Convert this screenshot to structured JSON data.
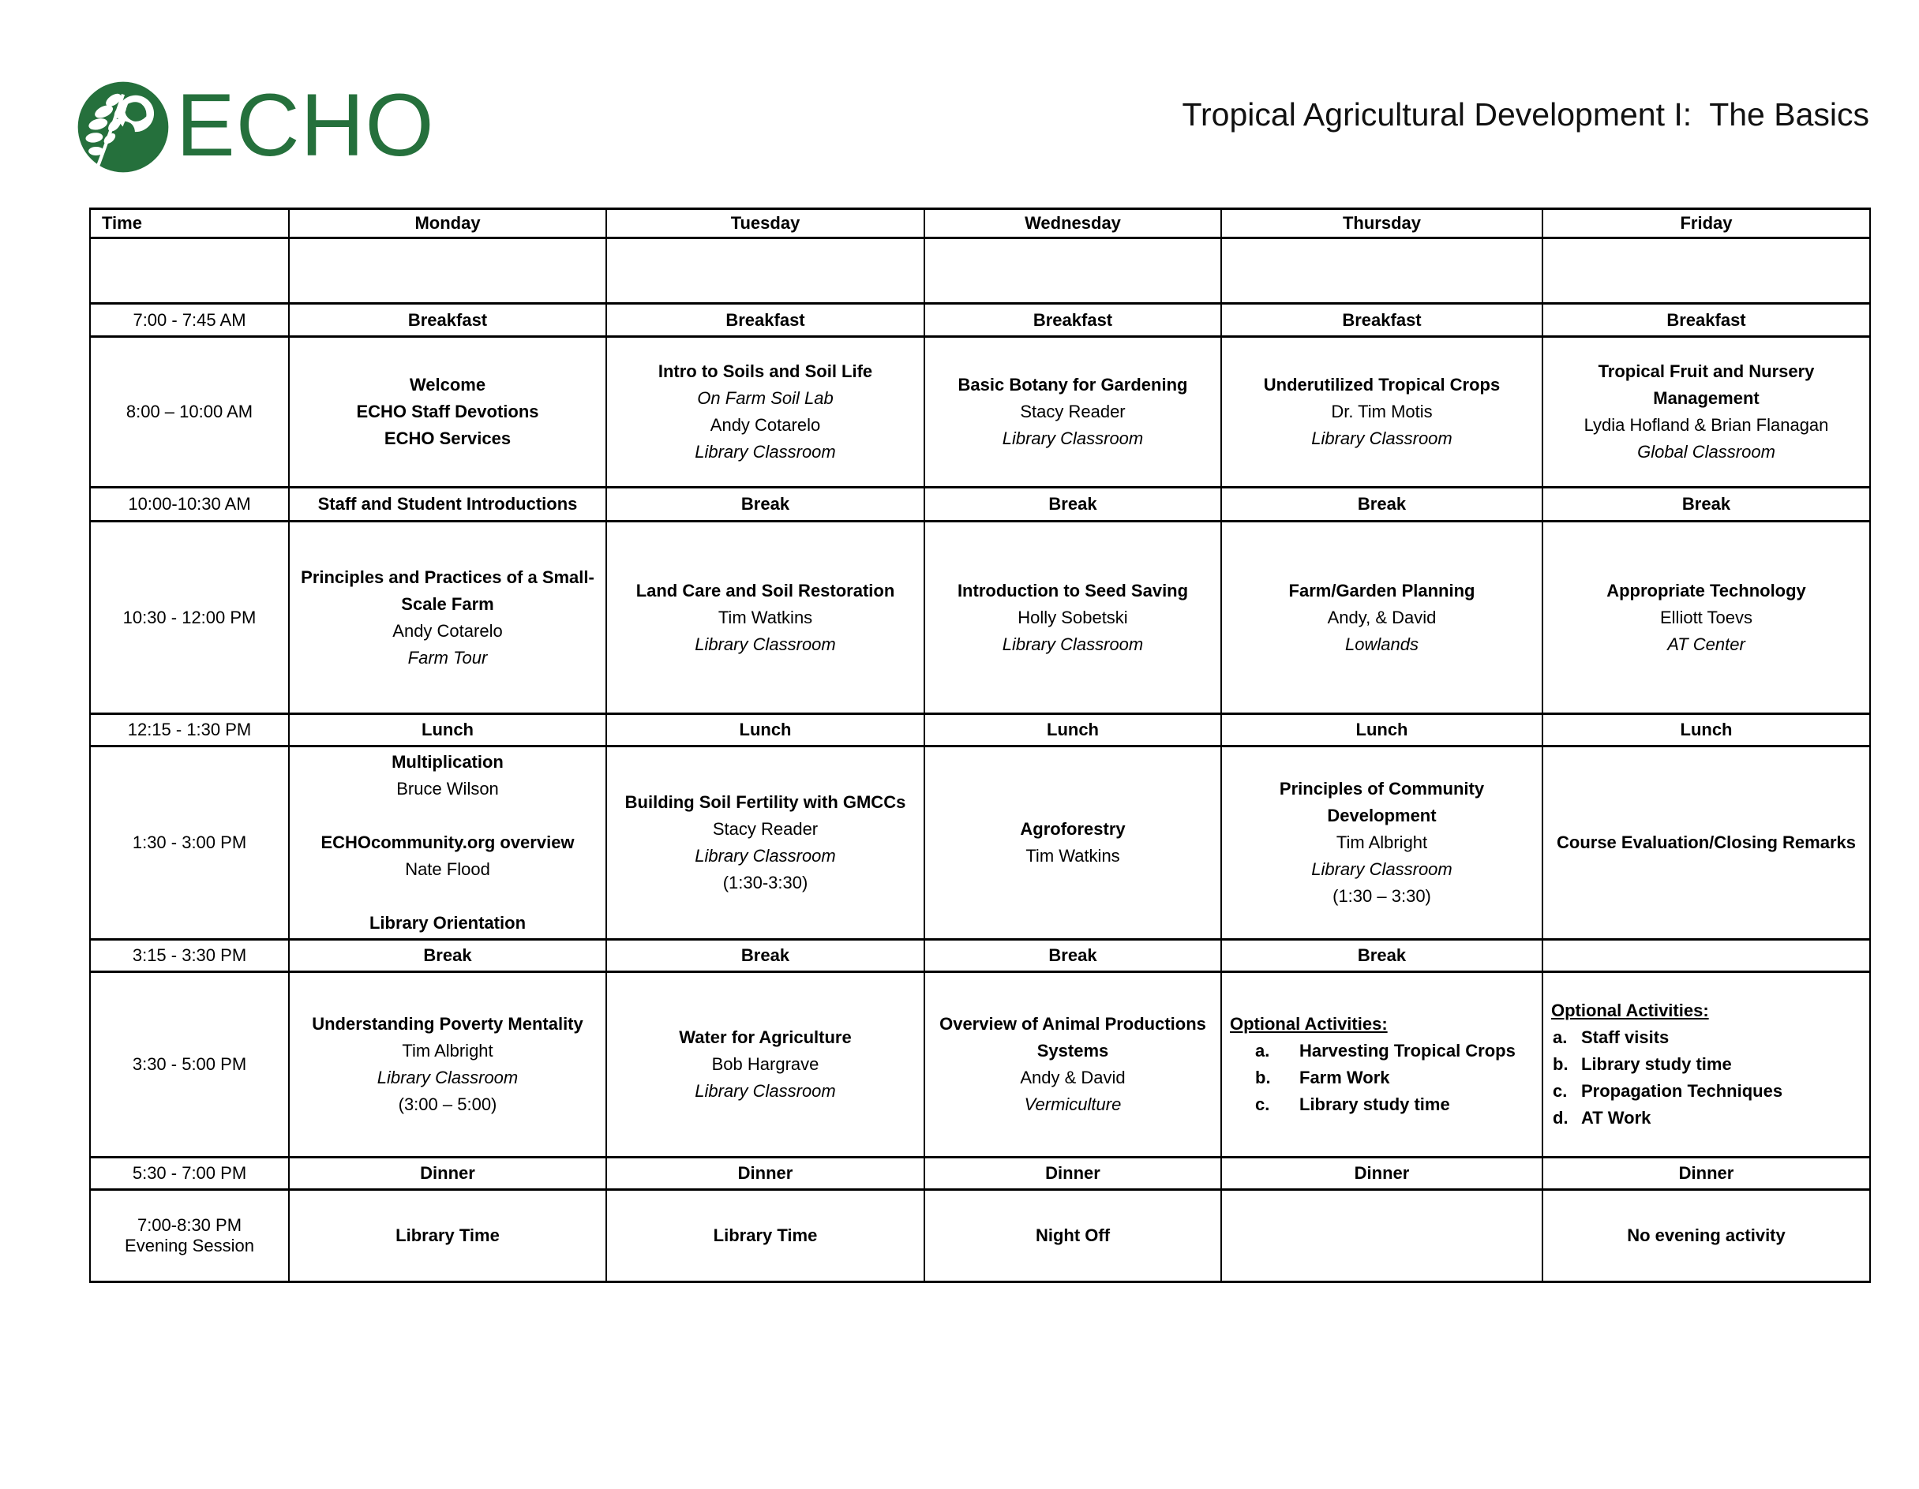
{
  "logo": {
    "text": "ECHO",
    "icon": "echo-leaf-globe-icon",
    "color": "#25703c"
  },
  "header": {
    "title": "Tropical Agricultural Development I:  The Basics"
  },
  "table": {
    "columns": [
      "Time",
      "Monday",
      "Tuesday",
      "Wednesday",
      "Thursday",
      "Friday"
    ],
    "rows": [
      {
        "time": "",
        "cells": [
          {
            "lines": []
          },
          {
            "lines": []
          },
          {
            "lines": []
          },
          {
            "lines": []
          },
          {
            "lines": []
          }
        ]
      },
      {
        "time": "7:00 - 7:45 AM",
        "cells": [
          {
            "lines": [
              {
                "style": "bold",
                "text": "Breakfast"
              }
            ]
          },
          {
            "lines": [
              {
                "style": "bold",
                "text": "Breakfast"
              }
            ]
          },
          {
            "lines": [
              {
                "style": "bold",
                "text": "Breakfast"
              }
            ]
          },
          {
            "lines": [
              {
                "style": "bold",
                "text": "Breakfast"
              }
            ]
          },
          {
            "lines": [
              {
                "style": "bold",
                "text": "Breakfast"
              }
            ]
          }
        ]
      },
      {
        "time": "8:00 – 10:00 AM",
        "cells": [
          {
            "lines": [
              {
                "style": "bold",
                "text": "Welcome"
              },
              {
                "style": "bold",
                "text": "ECHO Staff Devotions"
              },
              {
                "style": "bold",
                "text": "ECHO Services"
              }
            ]
          },
          {
            "lines": [
              {
                "style": "bold",
                "text": "Intro to Soils and Soil Life"
              },
              {
                "style": "italic",
                "text": "On Farm Soil Lab"
              },
              {
                "style": "plain",
                "text": "Andy Cotarelo"
              },
              {
                "style": "italic",
                "text": "Library Classroom"
              }
            ]
          },
          {
            "lines": [
              {
                "style": "bold",
                "text": "Basic Botany for Gardening"
              },
              {
                "style": "plain",
                "text": "Stacy Reader"
              },
              {
                "style": "italic",
                "text": "Library Classroom"
              }
            ]
          },
          {
            "lines": [
              {
                "style": "bold",
                "text": "Underutilized Tropical Crops"
              },
              {
                "style": "plain",
                "text": "Dr. Tim Motis"
              },
              {
                "style": "italic",
                "text": "Library Classroom"
              }
            ]
          },
          {
            "lines": [
              {
                "style": "bold",
                "text": "Tropical Fruit and Nursery Management"
              },
              {
                "style": "plain",
                "text": "Lydia Hofland & Brian Flanagan"
              },
              {
                "style": "italic",
                "text": "Global Classroom"
              }
            ]
          }
        ]
      },
      {
        "time": "10:00-10:30 AM",
        "cells": [
          {
            "lines": [
              {
                "style": "bold",
                "text": "Staff and Student Introductions"
              }
            ]
          },
          {
            "lines": [
              {
                "style": "bold",
                "text": "Break"
              }
            ]
          },
          {
            "lines": [
              {
                "style": "bold",
                "text": "Break"
              }
            ]
          },
          {
            "lines": [
              {
                "style": "bold",
                "text": "Break"
              }
            ]
          },
          {
            "lines": [
              {
                "style": "bold",
                "text": "Break"
              }
            ]
          }
        ]
      },
      {
        "time": "10:30 - 12:00 PM",
        "cells": [
          {
            "lines": [
              {
                "style": "bold",
                "text": "Principles and Practices of a Small-Scale Farm"
              },
              {
                "style": "plain",
                "text": "Andy Cotarelo"
              },
              {
                "style": "italic",
                "text": "Farm Tour"
              }
            ]
          },
          {
            "lines": [
              {
                "style": "bold",
                "text": "Land Care and Soil Restoration"
              },
              {
                "style": "plain",
                "text": "Tim Watkins"
              },
              {
                "style": "italic",
                "text": "Library Classroom"
              }
            ]
          },
          {
            "lines": [
              {
                "style": "bold",
                "text": "Introduction to Seed Saving"
              },
              {
                "style": "plain",
                "text": "Holly Sobetski"
              },
              {
                "style": "italic",
                "text": "Library Classroom"
              }
            ]
          },
          {
            "lines": [
              {
                "style": "bold",
                "text": "Farm/Garden Planning"
              },
              {
                "style": "plain",
                "text": "Andy, & David"
              },
              {
                "style": "italic",
                "text": "Lowlands"
              }
            ]
          },
          {
            "lines": [
              {
                "style": "bold",
                "text": "Appropriate Technology"
              },
              {
                "style": "plain",
                "text": "Elliott Toevs"
              },
              {
                "style": "italic",
                "text": "AT Center"
              }
            ]
          }
        ]
      },
      {
        "time": "12:15 - 1:30 PM",
        "cells": [
          {
            "lines": [
              {
                "style": "bold",
                "text": "Lunch"
              }
            ]
          },
          {
            "lines": [
              {
                "style": "bold",
                "text": "Lunch"
              }
            ]
          },
          {
            "lines": [
              {
                "style": "bold",
                "text": "Lunch"
              }
            ]
          },
          {
            "lines": [
              {
                "style": "bold",
                "text": "Lunch"
              }
            ]
          },
          {
            "lines": [
              {
                "style": "bold",
                "text": "Lunch"
              }
            ]
          }
        ]
      },
      {
        "time": "1:30 - 3:00 PM",
        "cells": [
          {
            "lines": [
              {
                "style": "bold",
                "text": "Multiplication"
              },
              {
                "style": "plain",
                "text": "Bruce Wilson"
              },
              {
                "style": "gap",
                "text": ""
              },
              {
                "style": "bold",
                "text": "ECHOcommunity.org overview"
              },
              {
                "style": "plain",
                "text": "Nate Flood"
              },
              {
                "style": "gap",
                "text": ""
              },
              {
                "style": "bold",
                "text": "Library Orientation"
              }
            ]
          },
          {
            "lines": [
              {
                "style": "bold",
                "text": "Building Soil Fertility with GMCCs"
              },
              {
                "style": "plain",
                "text": "Stacy Reader"
              },
              {
                "style": "italic",
                "text": "Library Classroom"
              },
              {
                "style": "plain",
                "text": "(1:30-3:30)"
              }
            ]
          },
          {
            "lines": [
              {
                "style": "bold",
                "text": "Agroforestry"
              },
              {
                "style": "plain",
                "text": "Tim Watkins"
              }
            ]
          },
          {
            "lines": [
              {
                "style": "bold",
                "text": "Principles of Community Development"
              },
              {
                "style": "plain",
                "text": "Tim Albright"
              },
              {
                "style": "italic",
                "text": "Library Classroom"
              },
              {
                "style": "plain",
                "text": "(1:30 – 3:30)"
              }
            ]
          },
          {
            "lines": [
              {
                "style": "bold",
                "text": "Course Evaluation/Closing Remarks"
              }
            ]
          }
        ]
      },
      {
        "time": "3:15 - 3:30 PM",
        "cells": [
          {
            "lines": [
              {
                "style": "bold",
                "text": "Break"
              }
            ]
          },
          {
            "lines": [
              {
                "style": "bold",
                "text": "Break"
              }
            ]
          },
          {
            "lines": [
              {
                "style": "bold",
                "text": "Break"
              }
            ]
          },
          {
            "lines": [
              {
                "style": "bold",
                "text": "Break"
              }
            ]
          },
          {
            "lines": []
          }
        ]
      },
      {
        "time": "3:30 - 5:00 PM",
        "cells": [
          {
            "lines": [
              {
                "style": "bold",
                "text": "Understanding Poverty Mentality"
              },
              {
                "style": "plain",
                "text": "Tim Albright"
              },
              {
                "style": "italic",
                "text": "Library Classroom"
              },
              {
                "style": "plain",
                "text": "(3:00 – 5:00)"
              }
            ]
          },
          {
            "lines": [
              {
                "style": "bold",
                "text": "Water for Agriculture"
              },
              {
                "style": "plain",
                "text": "Bob Hargrave"
              },
              {
                "style": "italic",
                "text": "Library Classroom"
              }
            ]
          },
          {
            "lines": [
              {
                "style": "bold",
                "text": "Overview of Animal Productions Systems"
              },
              {
                "style": "plain",
                "text": "Andy & David"
              },
              {
                "style": "italic",
                "text": "Vermiculture"
              }
            ]
          },
          {
            "valign": "top",
            "lines": [
              {
                "style": "bold-underline",
                "text": "Optional Activities:"
              },
              {
                "style": "list",
                "marker": "a.",
                "text": "Harvesting Tropical Crops"
              },
              {
                "style": "list",
                "marker": "b.",
                "text": "Farm Work"
              },
              {
                "style": "list",
                "marker": "c.",
                "text": "Library study time"
              }
            ]
          },
          {
            "valign": "top",
            "lines": [
              {
                "style": "bold-underline",
                "text": "Optional Activities:"
              },
              {
                "style": "list2",
                "marker": "a.",
                "text": "Staff visits"
              },
              {
                "style": "list2",
                "marker": "b.",
                "text": "Library study time"
              },
              {
                "style": "list2",
                "marker": "c.",
                "text": "Propagation Techniques"
              },
              {
                "style": "list2",
                "marker": "d.",
                "text": "AT Work"
              }
            ]
          }
        ]
      },
      {
        "time": "5:30 - 7:00 PM",
        "cells": [
          {
            "lines": [
              {
                "style": "bold",
                "text": "Dinner"
              }
            ]
          },
          {
            "lines": [
              {
                "style": "bold",
                "text": "Dinner"
              }
            ]
          },
          {
            "lines": [
              {
                "style": "bold",
                "text": "Dinner"
              }
            ]
          },
          {
            "lines": [
              {
                "style": "bold",
                "text": "Dinner"
              }
            ]
          },
          {
            "lines": [
              {
                "style": "bold",
                "text": "Dinner"
              }
            ]
          }
        ]
      },
      {
        "time": [
          "7:00-8:30 PM",
          "Evening Session"
        ],
        "cells": [
          {
            "lines": [
              {
                "style": "bold",
                "text": "Library Time"
              }
            ]
          },
          {
            "lines": [
              {
                "style": "bold",
                "text": "Library Time"
              }
            ]
          },
          {
            "lines": [
              {
                "style": "bold",
                "text": "Night Off"
              }
            ]
          },
          {
            "lines": []
          },
          {
            "lines": [
              {
                "style": "bold",
                "text": "No evening activity"
              }
            ]
          }
        ]
      }
    ]
  }
}
